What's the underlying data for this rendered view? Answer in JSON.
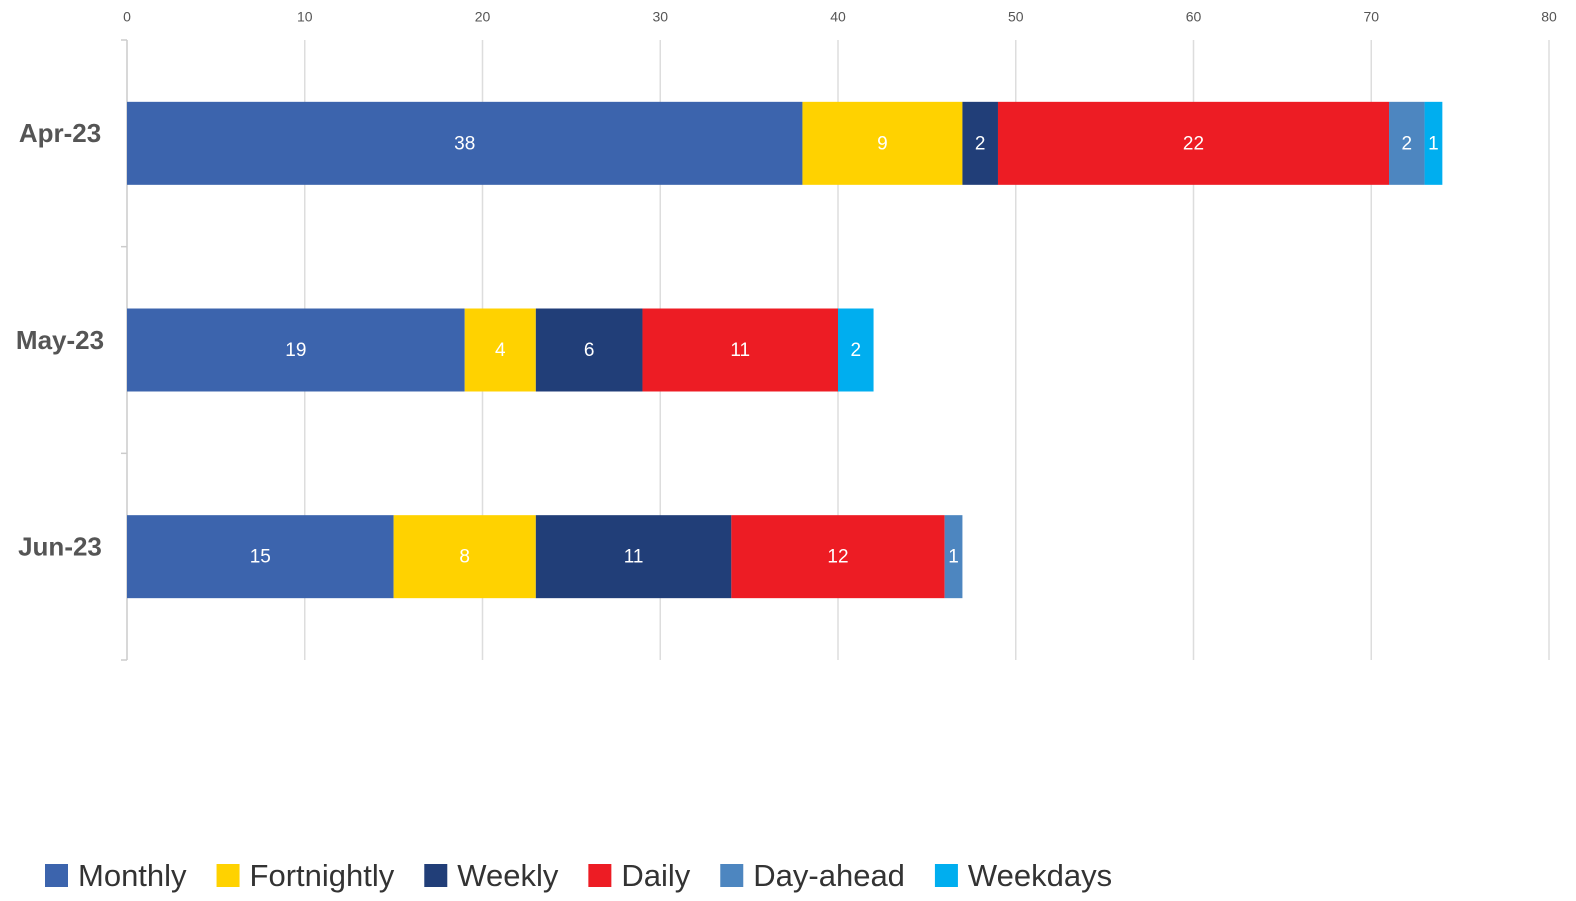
{
  "chart_data": {
    "type": "stacked_bar_horizontal",
    "categories": [
      "Apr-23",
      "May-23",
      "Jun-23"
    ],
    "series": [
      {
        "name": "Monthly",
        "color": "#3c64ad",
        "values": [
          38,
          19,
          15
        ]
      },
      {
        "name": "Fortnightly",
        "color": "#ffd200",
        "values": [
          9,
          4,
          8
        ]
      },
      {
        "name": "Weekly",
        "color": "#213e78",
        "values": [
          2,
          6,
          11
        ]
      },
      {
        "name": "Daily",
        "color": "#ed1c24",
        "values": [
          22,
          11,
          12
        ]
      },
      {
        "name": "Day-ahead",
        "color": "#4d86c0",
        "values": [
          2,
          null,
          1
        ]
      },
      {
        "name": "Weekdays",
        "color": "#00aeef",
        "values": [
          1,
          2,
          null
        ]
      }
    ],
    "xlim": [
      0,
      80
    ],
    "xticks": [
      0,
      10,
      20,
      30,
      40,
      50,
      60,
      70,
      80
    ],
    "grid": true,
    "legend": "bottom"
  }
}
